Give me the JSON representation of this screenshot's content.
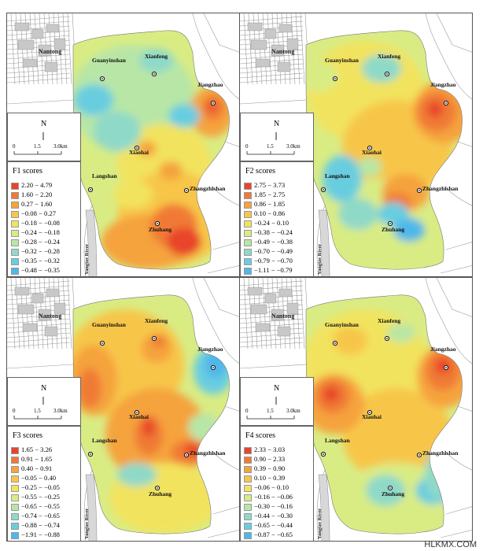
{
  "panels": [
    {
      "title": "F1  scores",
      "legend": [
        {
          "range": "2.20 − 4.79",
          "color": "#e8452c"
        },
        {
          "range": "1.60 − 2.20",
          "color": "#f07a35"
        },
        {
          "range": "0.27 − 1.60",
          "color": "#f5a33c"
        },
        {
          "range": "−0.08 − 0.27",
          "color": "#f7c64a"
        },
        {
          "range": "−0.18 − −0.08",
          "color": "#f2e35e"
        },
        {
          "range": "−0.24 − −0.18",
          "color": "#d9ec84"
        },
        {
          "range": "−0.28 − −0.24",
          "color": "#b8e6a6"
        },
        {
          "range": "−0.32 − −0.28",
          "color": "#8fd9c8"
        },
        {
          "range": "−0.35 − −0.32",
          "color": "#69cde0"
        },
        {
          "range": "−0.48 − −0.35",
          "color": "#4fb7ea"
        }
      ]
    },
    {
      "title": "F2  scores",
      "legend": [
        {
          "range": "2.75 − 3.73",
          "color": "#e8452c"
        },
        {
          "range": "1.85 − 2.75",
          "color": "#f07a35"
        },
        {
          "range": "0.86 − 1.85",
          "color": "#f5a33c"
        },
        {
          "range": "0.10 − 0.86",
          "color": "#f7c64a"
        },
        {
          "range": "−0.24 − 0.10",
          "color": "#f2e35e"
        },
        {
          "range": "−0.38 − −0.24",
          "color": "#d9ec84"
        },
        {
          "range": "−0.49 − −0.38",
          "color": "#b8e6a6"
        },
        {
          "range": "−0.70 − −0.49",
          "color": "#8fd9c8"
        },
        {
          "range": "−0.79 − −0.70",
          "color": "#69cde0"
        },
        {
          "range": "−1.11 − −0.79",
          "color": "#4fb7ea"
        }
      ]
    },
    {
      "title": "F3  scores",
      "legend": [
        {
          "range": "1.65 − 3.26",
          "color": "#e8452c"
        },
        {
          "range": "0.91 − 1.65",
          "color": "#f07a35"
        },
        {
          "range": "0.40 − 0.91",
          "color": "#f5a33c"
        },
        {
          "range": "−0.05 − 0.40",
          "color": "#f7c64a"
        },
        {
          "range": "−0.25 − −0.05",
          "color": "#f2e35e"
        },
        {
          "range": "−0.55 − −0.25",
          "color": "#d9ec84"
        },
        {
          "range": "−0.65 − −0.55",
          "color": "#b8e6a6"
        },
        {
          "range": "−0.74 − −0.65",
          "color": "#8fd9c8"
        },
        {
          "range": "−0.88 − −0.74",
          "color": "#69cde0"
        },
        {
          "range": "−1.91 − −0.88",
          "color": "#4fb7ea"
        }
      ]
    },
    {
      "title": "F4  scores",
      "legend": [
        {
          "range": "2.33 − 3.03",
          "color": "#e8452c"
        },
        {
          "range": "0.90 − 2.33",
          "color": "#f07a35"
        },
        {
          "range": "0.39 − 0.90",
          "color": "#f5a33c"
        },
        {
          "range": "0.10 − 0.39",
          "color": "#f7c64a"
        },
        {
          "range": "−0.06 − 0.10",
          "color": "#f2e35e"
        },
        {
          "range": "−0.16 − −0.06",
          "color": "#d9ec84"
        },
        {
          "range": "−0.30 − −0.16",
          "color": "#b8e6a6"
        },
        {
          "range": "−0.44 − −0.30",
          "color": "#8fd9c8"
        },
        {
          "range": "−0.65 − −0.44",
          "color": "#69cde0"
        },
        {
          "range": "−0.87 − −0.65",
          "color": "#4fb7ea"
        }
      ]
    }
  ],
  "places": {
    "city": "Nantong",
    "guanyinshan": "Guanyinshan",
    "xianfeng": "Xianfeng",
    "jiangzhao": "Jiangzhao",
    "xiaohai": "Xiaohai",
    "langshan": "Langshan",
    "zhangzhishan": "Zhangzhishan",
    "zhuhang": "Zhuhang",
    "river": "Yangtze River"
  },
  "scale": {
    "north": "N",
    "t0": "0",
    "t1": "1.5",
    "t2": "3.0km"
  },
  "watermark": "HLKMX.COM"
}
